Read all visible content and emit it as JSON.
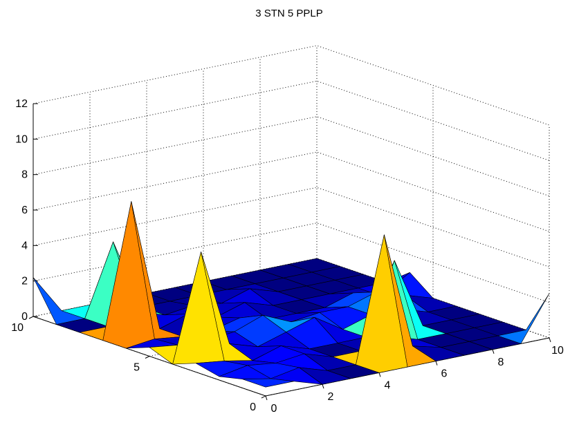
{
  "chart_data": {
    "type": "surface",
    "title": "3 STN 5 PPLP",
    "xlabel": "",
    "ylabel": "",
    "zlabel": "",
    "xlim": [
      0,
      10
    ],
    "ylim": [
      0,
      10
    ],
    "zlim": [
      0,
      12
    ],
    "grid": true,
    "x_ticks": [
      "0",
      "2",
      "4",
      "6",
      "8",
      "10"
    ],
    "y_ticks": [
      "0",
      "5",
      "10"
    ],
    "z_ticks": [
      "0",
      "2",
      "4",
      "6",
      "8",
      "10",
      "12"
    ],
    "x": [
      0,
      1,
      2,
      3,
      4,
      5,
      6,
      7,
      8,
      9,
      10
    ],
    "y": [
      0,
      1,
      2,
      3,
      4,
      5,
      6,
      7,
      8,
      9,
      10
    ],
    "z_grid": [
      [
        0.5,
        0.5,
        0,
        0,
        0,
        0,
        0,
        0,
        0,
        0,
        2.5
      ],
      [
        0.5,
        0.2,
        0.5,
        0,
        0,
        7.0,
        0.4,
        0,
        0,
        0,
        0
      ],
      [
        0.2,
        0.5,
        0.3,
        0.5,
        0,
        0,
        0.5,
        0,
        0,
        0,
        0
      ],
      [
        0.5,
        0.3,
        0,
        0.5,
        0,
        0,
        0,
        4.0,
        0,
        0,
        0
      ],
      [
        0,
        6.0,
        0.5,
        0,
        0.5,
        1.0,
        0,
        0.5,
        0.5,
        0,
        0
      ],
      [
        0.5,
        0.3,
        0.2,
        0.4,
        1.0,
        0.3,
        0.5,
        0.5,
        1.0,
        0.5,
        0
      ],
      [
        0,
        0.2,
        0,
        0,
        0.4,
        0,
        0,
        0,
        0.5,
        0,
        1.0
      ],
      [
        0,
        7.5,
        0,
        0.5,
        0,
        0.5,
        0,
        0,
        0,
        0,
        0
      ],
      [
        0,
        0,
        0.5,
        0,
        0.2,
        0,
        0.5,
        0,
        0,
        0,
        0
      ],
      [
        0,
        0,
        4.0,
        0,
        0,
        0,
        0,
        0,
        0,
        0,
        0
      ],
      [
        2.2,
        0,
        0,
        0,
        0,
        0,
        0,
        0,
        0,
        0,
        0
      ]
    ]
  }
}
